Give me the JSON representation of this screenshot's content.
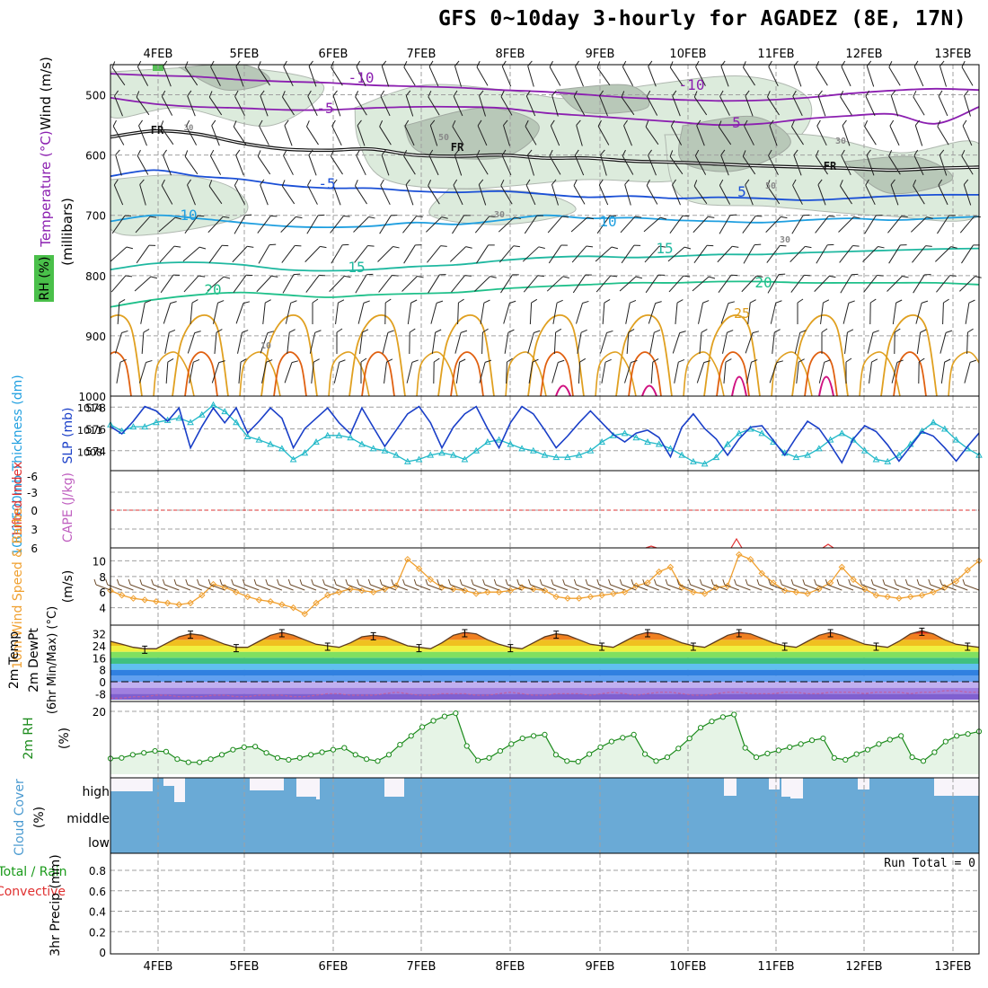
{
  "title": "GFS 0~10day 3-hourly for AGADEZ (8E, 17N)",
  "colors": {
    "purple": "#8b1fb0",
    "blue": "#1a4fd6",
    "cyan": "#1f9fe0",
    "teal": "#1fb8a0",
    "teal2": "#1fc08a",
    "orange": "#e0a020",
    "darkorange": "#e06010",
    "magenta": "#d01080",
    "slp": "#1a3fc8",
    "thick": "#20b8c8",
    "windline": "#f0a030",
    "rhgreen": "#1a8a1a",
    "cloud": "#6aaad6",
    "cape": "#c060c0"
  },
  "chart_data": [
    {
      "panel": "upper-air",
      "type": "line",
      "ylabel": [
        "Wind (m/s)",
        "Temperature (°C)",
        "RH (%)",
        "(millibars)"
      ],
      "yticks": [
        500,
        600,
        700,
        800,
        900,
        1000
      ],
      "ylim": [
        450,
        1000
      ],
      "dates": [
        "4FEB",
        "5FEB",
        "6FEB",
        "7FEB",
        "8FEB",
        "9FEB",
        "10FEB",
        "11FEB",
        "12FEB",
        "13FEB"
      ],
      "contour_labels": [
        "-10",
        "-10",
        "-5",
        "5",
        "FR",
        "FR",
        "FR",
        "-5",
        "5",
        "5",
        "10",
        "10",
        "15",
        "15",
        "20",
        "20",
        "25",
        "30",
        "30",
        "30",
        "30",
        "50",
        "50",
        "10"
      ],
      "isotherms": [
        {
          "name": "-10",
          "pressures": [
            465,
            468,
            470,
            475,
            478,
            480,
            484,
            486,
            488,
            492,
            495,
            500,
            505,
            508,
            510,
            509,
            505,
            498,
            493,
            490,
            492
          ]
        },
        {
          "name": "-5",
          "pressures": [
            505,
            515,
            520,
            522,
            525,
            525,
            522,
            520,
            520,
            522,
            530,
            535,
            540,
            545,
            550,
            548,
            540,
            535,
            532,
            548,
            520
          ]
        },
        {
          "name": "FR",
          "pressures": [
            570,
            560,
            565,
            580,
            590,
            592,
            590,
            600,
            602,
            600,
            605,
            605,
            610,
            612,
            615,
            618,
            620,
            622,
            625,
            622,
            620
          ]
        },
        {
          "name": "5",
          "pressures": [
            635,
            625,
            635,
            640,
            650,
            655,
            655,
            660,
            662,
            660,
            665,
            670,
            668,
            672,
            670,
            672,
            675,
            672,
            668,
            666,
            666
          ]
        },
        {
          "name": "10",
          "pressures": [
            710,
            700,
            705,
            712,
            718,
            720,
            718,
            712,
            715,
            708,
            700,
            705,
            704,
            708,
            710,
            712,
            708,
            705,
            708,
            705,
            702
          ]
        },
        {
          "name": "15",
          "pressures": [
            790,
            780,
            778,
            782,
            790,
            792,
            790,
            785,
            782,
            775,
            770,
            768,
            770,
            768,
            765,
            765,
            762,
            760,
            758,
            756,
            755
          ]
        },
        {
          "name": "20",
          "pressures": [
            852,
            840,
            832,
            828,
            832,
            836,
            832,
            830,
            828,
            822,
            818,
            815,
            812,
            812,
            810,
            810,
            812,
            812,
            812,
            812,
            815
          ]
        }
      ]
    },
    {
      "panel": "slp-thickness",
      "type": "line",
      "ylabel": [
        "1000-500mb Thickness (dm)",
        "SLP (mb)"
      ],
      "yticks_left": [
        574,
        576,
        578
      ],
      "yticks_right": [
        1008,
        1011,
        1014
      ],
      "series": [
        {
          "name": "SLP (mb)",
          "values": [
            1011.5,
            1010.5,
            1012.2,
            1014.2,
            1013.6,
            1012.2,
            1014.0,
            1008.6,
            1011.5,
            1014.0,
            1012.0,
            1014.0,
            1010.6,
            1012.2,
            1014.0,
            1012.6,
            1008.6,
            1011.2,
            1012.6,
            1014.0,
            1012.0,
            1010.5,
            1014.0,
            1011.4,
            1008.8,
            1011.0,
            1013.2,
            1014.2,
            1012.0,
            1008.6,
            1011.4,
            1013.2,
            1014.2,
            1011.2,
            1008.6,
            1012.0,
            1014.2,
            1013.2,
            1011.0,
            1008.6,
            1010.2,
            1012.0,
            1013.6,
            1012.0,
            1010.4,
            1009.4,
            1010.6,
            1011.0,
            1010.0,
            1007.4,
            1011.4,
            1013.2,
            1011.2,
            1009.8,
            1007.6,
            1009.8,
            1011.4,
            1011.6,
            1009.6,
            1007.6,
            1010.0,
            1012.2,
            1011.2,
            1009.0,
            1006.6,
            1009.8,
            1011.6,
            1010.8,
            1009.0,
            1006.8,
            1008.8,
            1010.8,
            1010.2,
            1008.6,
            1006.8,
            1008.8,
            1010.6
          ]
        },
        {
          "name": "Thickness (dm)",
          "values": [
            576.4,
            575.8,
            576.2,
            576.2,
            576.6,
            576.8,
            577.0,
            576.6,
            577.3,
            578.2,
            577.6,
            576.6,
            575.3,
            575.0,
            574.6,
            574.2,
            573.2,
            573.8,
            574.8,
            575.4,
            575.4,
            575.2,
            574.6,
            574.2,
            574.0,
            573.6,
            573.0,
            573.2,
            573.6,
            573.8,
            573.6,
            573.2,
            574.0,
            574.8,
            575.0,
            574.6,
            574.2,
            574.0,
            573.6,
            573.4,
            573.4,
            573.6,
            574.0,
            574.8,
            575.4,
            575.6,
            575.2,
            574.8,
            574.6,
            574.2,
            573.6,
            573.0,
            572.8,
            573.4,
            574.6,
            575.6,
            576.0,
            575.6,
            574.8,
            573.8,
            573.4,
            573.6,
            574.2,
            575.0,
            575.6,
            575.0,
            574.0,
            573.2,
            573.0,
            573.6,
            574.6,
            575.8,
            576.6,
            576.0,
            575.0,
            574.2,
            573.6
          ]
        }
      ]
    },
    {
      "panel": "stability",
      "type": "line",
      "ylabel": [
        "Lifted Index",
        "CAPE (J/kg)"
      ],
      "yticks": [
        "-6",
        "-3",
        "0",
        "3",
        "6"
      ]
    },
    {
      "panel": "10m-wind",
      "type": "line",
      "ylabel": [
        "10m Wind Speed & Barbs",
        "(m/s)"
      ],
      "yticks": [
        4,
        6,
        8,
        10
      ],
      "series": [
        {
          "name": "10m Wind Speed",
          "values": [
            6.2,
            5.6,
            5.2,
            5.0,
            4.8,
            4.6,
            4.4,
            4.6,
            5.6,
            7.0,
            6.6,
            6.0,
            5.4,
            5.0,
            4.8,
            4.4,
            4.0,
            3.2,
            4.6,
            5.6,
            6.0,
            6.4,
            6.2,
            6.0,
            6.4,
            6.8,
            10.2,
            9.0,
            7.6,
            6.6,
            6.4,
            6.2,
            5.8,
            6.0,
            6.0,
            6.2,
            6.6,
            6.4,
            6.2,
            5.4,
            5.2,
            5.2,
            5.4,
            5.6,
            5.8,
            6.0,
            6.8,
            7.2,
            8.6,
            9.2,
            6.6,
            6.0,
            5.8,
            6.6,
            6.8,
            10.8,
            10.2,
            8.4,
            7.2,
            6.2,
            6.0,
            5.8,
            6.4,
            7.2,
            9.2,
            7.6,
            6.4,
            5.6,
            5.4,
            5.2,
            5.4,
            5.6,
            6.0,
            6.6,
            7.4,
            8.8,
            10.0
          ]
        }
      ]
    },
    {
      "panel": "2m-temp",
      "type": "area",
      "ylabel": [
        "2m Temp",
        "2m DewPt",
        "(6hr Min/Max) (°C)"
      ],
      "yticks": [
        -8,
        0,
        8,
        16,
        24,
        32
      ],
      "series": [
        {
          "name": "2m Temp",
          "values": [
            27,
            25,
            23,
            22,
            22,
            26,
            30,
            32,
            31,
            28,
            25,
            23,
            23,
            27,
            31,
            33,
            31,
            28,
            25,
            24,
            23,
            26,
            30,
            31,
            30,
            27,
            24,
            23,
            22,
            26,
            31,
            33,
            32,
            28,
            25,
            23,
            22,
            26,
            30,
            32,
            31,
            28,
            25,
            24,
            23,
            27,
            31,
            33,
            32,
            29,
            26,
            24,
            23,
            27,
            31,
            33,
            32,
            29,
            26,
            24,
            23,
            27,
            31,
            33,
            31,
            28,
            25,
            24,
            23,
            27,
            32,
            34,
            32,
            28,
            25,
            24,
            23
          ]
        },
        {
          "name": "2m DewPt",
          "values": [
            -11,
            -11,
            -10,
            -10,
            -9,
            -9,
            -10,
            -10,
            -10,
            -9,
            -9,
            -10,
            -10,
            -9,
            -9,
            -9,
            -10,
            -10,
            -9,
            -8,
            -8,
            -9,
            -9,
            -9,
            -8,
            -7,
            -8,
            -9,
            -9,
            -8,
            -8,
            -8,
            -9,
            -9,
            -8,
            -7,
            -8,
            -9,
            -9,
            -8,
            -8,
            -8,
            -9,
            -8,
            -7,
            -8,
            -9,
            -8,
            -7,
            -7,
            -8,
            -9,
            -9,
            -8,
            -7,
            -7,
            -8,
            -8,
            -8,
            -7,
            -7,
            -8,
            -8,
            -7,
            -7,
            -7,
            -8,
            -7,
            -7,
            -7,
            -8,
            -7,
            -7,
            -6,
            -6,
            -7,
            -7
          ]
        }
      ]
    },
    {
      "panel": "2m-rh",
      "type": "area",
      "ylabel": [
        "2m RH",
        "(%)"
      ],
      "yticks": [
        20
      ],
      "series": [
        {
          "name": "2m RH",
          "values": [
            5.0,
            5.2,
            6.2,
            6.8,
            7.4,
            7.2,
            4.8,
            3.8,
            3.8,
            4.8,
            6.2,
            7.8,
            8.6,
            8.8,
            6.8,
            5.2,
            4.6,
            5.2,
            6.2,
            7.0,
            7.8,
            8.4,
            6.2,
            4.8,
            4.2,
            6.2,
            9.4,
            12.2,
            15.0,
            17.0,
            18.4,
            19.4,
            9.0,
            4.4,
            5.2,
            7.4,
            9.6,
            11.4,
            12.2,
            12.6,
            6.2,
            4.2,
            4.0,
            6.4,
            8.6,
            10.4,
            11.6,
            12.6,
            6.4,
            4.2,
            5.4,
            8.2,
            11.4,
            14.8,
            16.8,
            18.2,
            19.0,
            8.4,
            5.4,
            6.6,
            7.6,
            8.6,
            9.6,
            10.8,
            11.4,
            5.2,
            4.6,
            6.4,
            7.8,
            9.6,
            11.0,
            12.2,
            5.4,
            4.2,
            7.0,
            10.4,
            12.2,
            12.8,
            13.6
          ]
        }
      ]
    },
    {
      "panel": "cloud",
      "type": "bar",
      "ylabel": [
        "Cloud Cover",
        "(%)"
      ],
      "categories": [
        "high",
        "middle",
        "low"
      ]
    },
    {
      "panel": "precip",
      "type": "bar",
      "ylabel": [
        "Total / Rain",
        "Convective",
        "3hr Precip (mm)"
      ],
      "yticks": [
        0,
        0.2,
        0.4,
        0.6,
        0.8
      ],
      "ylim": [
        0,
        0.95
      ],
      "run_total": "Run Total = 0"
    }
  ]
}
